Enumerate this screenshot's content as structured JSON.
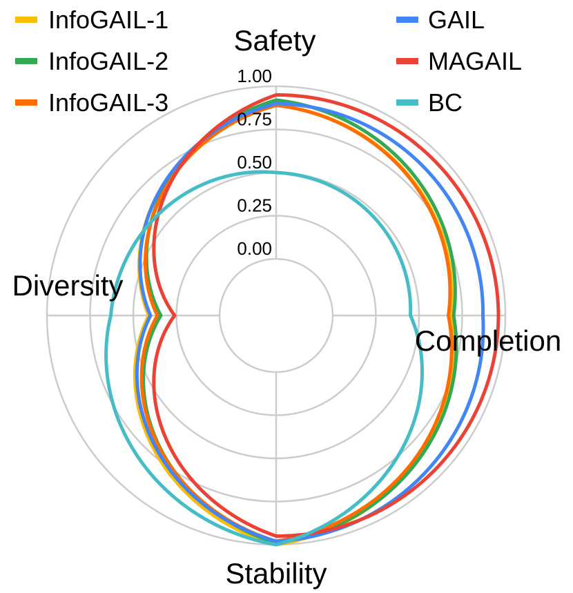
{
  "chart_data": {
    "type": "radar",
    "axes": [
      "Safety",
      "Completion",
      "Stability",
      "Diversity"
    ],
    "rlim": [
      0,
      1
    ],
    "ticks": [
      "0.00",
      "0.25",
      "0.50",
      "0.75",
      "1.00"
    ],
    "tick_values": [
      0,
      0.25,
      0.5,
      0.75,
      1.0
    ],
    "grid": true,
    "legend_position": "top",
    "series": [
      {
        "name": "InfoGAIL-1",
        "color": "#fbbc05",
        "values": [
          0.89,
          0.68,
          1.0,
          0.41
        ]
      },
      {
        "name": "InfoGAIL-2",
        "color": "#34a853",
        "values": [
          0.92,
          0.7,
          0.99,
          0.34
        ]
      },
      {
        "name": "InfoGAIL-3",
        "color": "#ff6d01",
        "values": [
          0.89,
          0.67,
          0.98,
          0.36
        ]
      },
      {
        "name": "GAIL",
        "color": "#4285f4",
        "values": [
          0.9,
          0.87,
          0.98,
          0.4
        ]
      },
      {
        "name": "MAGAIL",
        "color": "#ea4335",
        "values": [
          0.95,
          0.96,
          0.95,
          0.26
        ]
      },
      {
        "name": "BC",
        "color": "#46bdc6",
        "values": [
          0.5,
          0.45,
          1.0,
          0.63
        ]
      }
    ]
  }
}
